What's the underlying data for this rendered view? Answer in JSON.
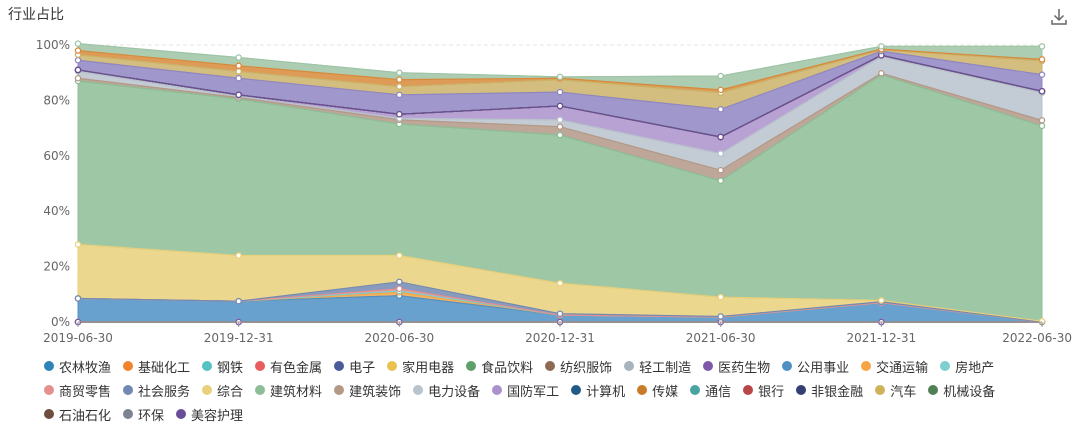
{
  "title": "行业占比",
  "chart_data": {
    "type": "area",
    "x": [
      "2019-06-30",
      "2019-12-31",
      "2020-06-30",
      "2020-12-31",
      "2021-06-30",
      "2021-12-31",
      "2022-06-30"
    ],
    "y_ticks": [
      "0%",
      "20%",
      "40%",
      "60%",
      "80%",
      "100%"
    ],
    "ylim": [
      0,
      100
    ],
    "stacked": true,
    "series": [
      {
        "name": "农林牧渔",
        "color": "#2e83b8",
        "values": [
          0,
          0,
          0,
          0,
          0,
          0,
          0
        ]
      },
      {
        "name": "基础化工",
        "color": "#f0842b",
        "values": [
          0,
          0,
          0,
          0,
          0,
          0,
          0
        ]
      },
      {
        "name": "钢铁",
        "color": "#56c1c1",
        "values": [
          0,
          0,
          0,
          0,
          0,
          0,
          0
        ]
      },
      {
        "name": "有色金属",
        "color": "#e85d5d",
        "values": [
          0,
          0,
          0,
          0,
          0,
          0,
          0
        ]
      },
      {
        "name": "电子",
        "color": "#4a5a9a",
        "values": [
          0,
          0,
          0,
          0,
          0,
          0,
          0
        ]
      },
      {
        "name": "家用电器",
        "color": "#e8c14e",
        "values": [
          0,
          0,
          0,
          0,
          0,
          0,
          0
        ]
      },
      {
        "name": "食品饮料",
        "color": "#5fa06a",
        "values": [
          0,
          0,
          0,
          0,
          0,
          0,
          0
        ]
      },
      {
        "name": "纺织服饰",
        "color": "#8f6a52",
        "values": [
          0,
          0,
          0,
          0,
          0,
          0,
          0
        ]
      },
      {
        "name": "轻工制造",
        "color": "#a9b3bd",
        "values": [
          0,
          0,
          0,
          0,
          0,
          0,
          0
        ]
      },
      {
        "name": "医药生物",
        "color": "#7d58a8",
        "values": [
          0,
          0,
          0,
          0,
          0,
          0,
          0
        ]
      },
      {
        "name": "公用事业",
        "color": "#4e90c4",
        "values": [
          8.5,
          7.5,
          9.5,
          2.5,
          1.8,
          7.0,
          0
        ]
      },
      {
        "name": "交通运输",
        "color": "#f6a545",
        "values": [
          0,
          0,
          1.2,
          0,
          0,
          0,
          0
        ]
      },
      {
        "name": "房地产",
        "color": "#7dcfd0",
        "values": [
          0,
          0,
          0.5,
          0,
          0,
          0,
          0
        ]
      },
      {
        "name": "商贸零售",
        "color": "#e58f8f",
        "values": [
          0,
          0,
          0.8,
          0,
          0,
          0,
          0
        ]
      },
      {
        "name": "社会服务",
        "color": "#7289b4",
        "values": [
          0,
          0,
          2.5,
          0.5,
          0.2,
          0.3,
          0
        ]
      },
      {
        "name": "综合",
        "color": "#e9d07a",
        "values": [
          19.5,
          16.5,
          9.5,
          11.0,
          7.0,
          0.5,
          0.3
        ]
      },
      {
        "name": "建筑材料",
        "color": "#8dbd96",
        "values": [
          59.0,
          56.5,
          47.5,
          53.5,
          42.0,
          81.5,
          70.5
        ]
      },
      {
        "name": "建筑装饰",
        "color": "#b39886",
        "values": [
          1.0,
          0.5,
          1.5,
          3.0,
          3.8,
          0.5,
          2.0
        ]
      },
      {
        "name": "电力设备",
        "color": "#b9c3cc",
        "values": [
          2.5,
          0.5,
          0.5,
          2.5,
          6.0,
          6.0,
          10.0
        ]
      },
      {
        "name": "国防军工",
        "color": "#ab92cc",
        "values": [
          0.5,
          0.5,
          1.5,
          5.0,
          6.0,
          0.5,
          0.5
        ]
      },
      {
        "name": "计算机",
        "color": "#245b86",
        "values": [
          0,
          0,
          0,
          0,
          0,
          0,
          0
        ]
      },
      {
        "name": "传媒",
        "color": "#c97b2a",
        "values": [
          0,
          0,
          0,
          0,
          0,
          0,
          0
        ]
      },
      {
        "name": "通信",
        "color": "#4aa3a3",
        "values": [
          0,
          0,
          0,
          0,
          0,
          0,
          0
        ]
      },
      {
        "name": "银行",
        "color": "#b84747",
        "values": [
          0,
          0,
          0,
          0,
          0,
          0,
          0
        ]
      },
      {
        "name": "非银金融",
        "color": "#363f75",
        "values": [
          0,
          0,
          0,
          0,
          0,
          0,
          0
        ]
      },
      {
        "name": "汽车",
        "color": "#cdb35a",
        "values": [
          0,
          0,
          0,
          0,
          0,
          0,
          0
        ]
      },
      {
        "name": "机械设备",
        "color": "#4f7f55",
        "values": [
          0,
          0,
          0,
          0,
          0,
          0,
          0
        ]
      },
      {
        "name": "石油石化",
        "color": "#6d4e3e",
        "values": [
          0,
          0,
          0,
          0,
          0,
          0,
          0
        ]
      },
      {
        "name": "环保",
        "color": "#7b858f",
        "values": [
          0,
          0,
          0,
          0,
          0,
          0,
          0
        ]
      },
      {
        "name": "美容护理",
        "color": "#6a4d9a",
        "values": [
          0,
          0,
          0,
          0,
          0,
          0,
          0
        ]
      }
    ],
    "extra_series_note": "",
    "top_band_series": [
      {
        "name": "美容护理",
        "color": "#8f86c4",
        "values": [
          3.5,
          6.0,
          7.0,
          5.0,
          10.0,
          1.5,
          6.0
        ]
      },
      {
        "name": "环保",
        "color": "#cbb36a",
        "values": [
          2.0,
          2.5,
          3.0,
          4.5,
          6.0,
          0.5,
          5.0
        ]
      },
      {
        "name": "石油石化",
        "color": "#d88a3a",
        "values": [
          1.5,
          2.0,
          2.5,
          0.5,
          1.0,
          0.2,
          0.5
        ]
      },
      {
        "name": "机械设备",
        "color": "#9fc4a6",
        "values": [
          2.5,
          3.0,
          2.5,
          0.5,
          5.0,
          1.0,
          4.7
        ]
      }
    ]
  }
}
